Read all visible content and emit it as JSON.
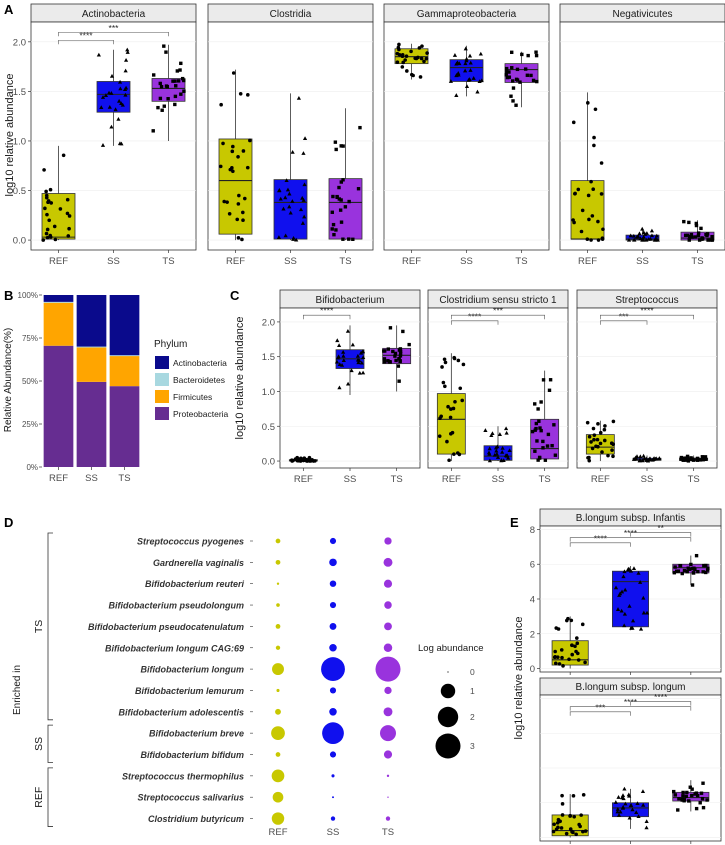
{
  "colors": {
    "ref": "#c8c800",
    "ss": "#1010ee",
    "ts": "#9933dd",
    "actinobacteria": "#0a0a8c",
    "bacteroidetes": "#a8d8e0",
    "firmicutes": "#ffa500",
    "proteobacteria": "#662d91",
    "strip_bg": "#ebebeb",
    "strip_border": "#333333"
  },
  "panel_labels": {
    "a": "A",
    "b": "B",
    "c": "C",
    "d": "D",
    "e": "E"
  },
  "chart_data": [
    {
      "id": "A",
      "type": "box",
      "ylabel": "log10 relative abundance",
      "ylim": [
        -0.1,
        2.2
      ],
      "yticks": [
        "0.0",
        "0.5",
        "1.0",
        "1.5",
        "2.0"
      ],
      "categories": [
        "REF",
        "SS",
        "TS"
      ],
      "facets": [
        {
          "title": "Actinobacteria",
          "boxes": [
            [
              0,
              0.01,
              0.03,
              0.47,
              0.95
            ],
            [
              0.95,
              1.29,
              1.47,
              1.6,
              1.92
            ],
            [
              1.0,
              1.4,
              1.53,
              1.63,
              1.97
            ]
          ],
          "sig": [
            {
              "from": 0,
              "to": 1,
              "label": "****"
            },
            {
              "from": 0,
              "to": 2,
              "label": "***"
            }
          ]
        },
        {
          "title": "Clostridia",
          "boxes": [
            [
              0,
              0.06,
              0.6,
              1.02,
              1.72
            ],
            [
              0,
              0.01,
              0.38,
              0.61,
              1.48
            ],
            [
              0,
              0.01,
              0.38,
              0.62,
              1.33
            ]
          ],
          "sig": []
        },
        {
          "title": "Gammaproteobacteria",
          "boxes": [
            [
              1.62,
              1.78,
              1.85,
              1.93,
              1.98
            ],
            [
              1.45,
              1.6,
              1.74,
              1.82,
              1.96
            ],
            [
              1.34,
              1.59,
              1.72,
              1.78,
              1.9
            ]
          ],
          "sig": []
        },
        {
          "title": "Negativicutes",
          "boxes": [
            [
              0,
              0.01,
              0.01,
              0.6,
              1.49
            ],
            [
              0,
              0.0,
              0.01,
              0.05,
              0.12
            ],
            [
              0,
              0.0,
              0.02,
              0.08,
              0.2
            ]
          ],
          "sig": []
        }
      ]
    },
    {
      "id": "B",
      "type": "stacked-bar",
      "ylabel": "Relative Abundance(%)",
      "yticks": [
        "0%",
        "25%",
        "50%",
        "75%",
        "100%"
      ],
      "categories": [
        "REF",
        "SS",
        "TS"
      ],
      "legend_title": "Phylum",
      "series": [
        {
          "name": "Actinobacteria",
          "values": [
            4,
            30,
            35
          ]
        },
        {
          "name": "Bacteroidetes",
          "values": [
            0.5,
            0.5,
            0.5
          ]
        },
        {
          "name": "Firmicutes",
          "values": [
            25,
            20,
            17.5
          ]
        },
        {
          "name": "Proteobacteria",
          "values": [
            70.5,
            49.5,
            47
          ]
        }
      ]
    },
    {
      "id": "C",
      "type": "box",
      "ylabel": "log10 relative abundance",
      "ylim": [
        -0.1,
        2.2
      ],
      "yticks": [
        "0.0",
        "0.5",
        "1.0",
        "1.5",
        "2.0"
      ],
      "categories": [
        "REF",
        "SS",
        "TS"
      ],
      "facets": [
        {
          "title": "Bifidobacterium",
          "boxes": [
            [
              0,
              0.0,
              0.01,
              0.02,
              0.05
            ],
            [
              0.95,
              1.33,
              1.47,
              1.6,
              1.95
            ],
            [
              1.0,
              1.4,
              1.52,
              1.62,
              1.95
            ]
          ],
          "sig": [
            {
              "from": 0,
              "to": 1,
              "label": "****"
            }
          ]
        },
        {
          "title": "Clostridium sensu stricto 1",
          "boxes": [
            [
              0,
              0.1,
              0.6,
              0.97,
              1.55
            ],
            [
              0,
              0.01,
              0.07,
              0.22,
              0.5
            ],
            [
              0,
              0.03,
              0.18,
              0.6,
              1.3
            ]
          ],
          "sig": [
            {
              "from": 0,
              "to": 1,
              "label": "****"
            },
            {
              "from": 0,
              "to": 2,
              "label": "***"
            }
          ]
        },
        {
          "title": "Streptococcus",
          "boxes": [
            [
              0,
              0.1,
              0.2,
              0.38,
              0.58
            ],
            [
              0,
              0.01,
              0.02,
              0.04,
              0.08
            ],
            [
              0,
              0.01,
              0.02,
              0.04,
              0.08
            ]
          ],
          "sig": [
            {
              "from": 0,
              "to": 1,
              "label": "***"
            },
            {
              "from": 0,
              "to": 2,
              "label": "****"
            }
          ]
        }
      ]
    },
    {
      "id": "D",
      "type": "bubble",
      "ylabel": "Enriched in",
      "categories": [
        "REF",
        "SS",
        "TS"
      ],
      "groups": [
        {
          "label": "TS",
          "first": 0,
          "last": 8
        },
        {
          "label": "SS",
          "first": 9,
          "last": 10
        },
        {
          "label": "REF",
          "first": 11,
          "last": 13
        }
      ],
      "species": [
        {
          "name": "Streptococcus pyogenes",
          "values": [
            0.12,
            0.2,
            0.28
          ]
        },
        {
          "name": "Gardnerella vaginalis",
          "values": [
            0.12,
            0.3,
            0.42
          ]
        },
        {
          "name": "Bifidobacterium reuteri",
          "values": [
            0.03,
            0.22,
            0.35
          ]
        },
        {
          "name": "Bifidobacterium pseudolongum",
          "values": [
            0.07,
            0.2,
            0.3
          ]
        },
        {
          "name": "Bifidobacterium pseudocatenulatum",
          "values": [
            0.12,
            0.25,
            0.32
          ]
        },
        {
          "name": "Bifidobacterium longum CAG:69",
          "values": [
            0.1,
            0.3,
            0.38
          ]
        },
        {
          "name": "Bifidobacterium longum",
          "values": [
            0.75,
            3.0,
            3.3
          ]
        },
        {
          "name": "Bifidobacterium lemurum",
          "values": [
            0.05,
            0.2,
            0.28
          ]
        },
        {
          "name": "Bifidobacterium adolescentis",
          "values": [
            0.18,
            0.3,
            0.42
          ]
        },
        {
          "name": "Bifidobacterium breve",
          "values": [
            1.0,
            2.5,
            1.35
          ]
        },
        {
          "name": "Bifidobacterium bifidum",
          "values": [
            0.12,
            0.2,
            0.35
          ]
        },
        {
          "name": "Streptococcus thermophilus",
          "values": [
            0.85,
            0.05,
            0.03
          ]
        },
        {
          "name": "Streptococcus salivarius",
          "values": [
            0.6,
            0.02,
            0.01
          ]
        },
        {
          "name": "Clostridium butyricum",
          "values": [
            0.82,
            0.1,
            0.1
          ]
        }
      ],
      "legend_title": "Log abundance",
      "legend_values": [
        "0",
        "1",
        "2",
        "3"
      ]
    },
    {
      "id": "E",
      "type": "box",
      "ylabel": "log10 relative abundance",
      "ylim": [
        -0.2,
        8.2
      ],
      "yticks": [
        "0",
        "2",
        "4",
        "6",
        "8"
      ],
      "categories": [
        "REF",
        "SS",
        "TS"
      ],
      "facets": [
        {
          "title": "B.longum subsp. Infantis",
          "boxes": [
            [
              0,
              0.2,
              0.5,
              1.6,
              3.0
            ],
            [
              2.2,
              2.4,
              5.0,
              5.6,
              5.9
            ],
            [
              4.8,
              5.5,
              5.8,
              6.0,
              6.5
            ]
          ],
          "sig": [
            {
              "from": 0,
              "to": 1,
              "label": "****"
            },
            {
              "from": 0,
              "to": 2,
              "label": "****"
            },
            {
              "from": 1,
              "to": 2,
              "label": "**"
            }
          ]
        },
        {
          "title": "B.longum subsp. longum",
          "boxes": [
            [
              0,
              0.1,
              0.4,
              1.3,
              2.5
            ],
            [
              0.5,
              1.2,
              1.7,
              2.0,
              2.8
            ],
            [
              1.5,
              2.1,
              2.3,
              2.6,
              3.3
            ]
          ],
          "sig": [
            {
              "from": 0,
              "to": 1,
              "label": "***"
            },
            {
              "from": 0,
              "to": 2,
              "label": "****"
            },
            {
              "from": 1,
              "to": 2,
              "label": "****"
            }
          ]
        }
      ]
    }
  ]
}
